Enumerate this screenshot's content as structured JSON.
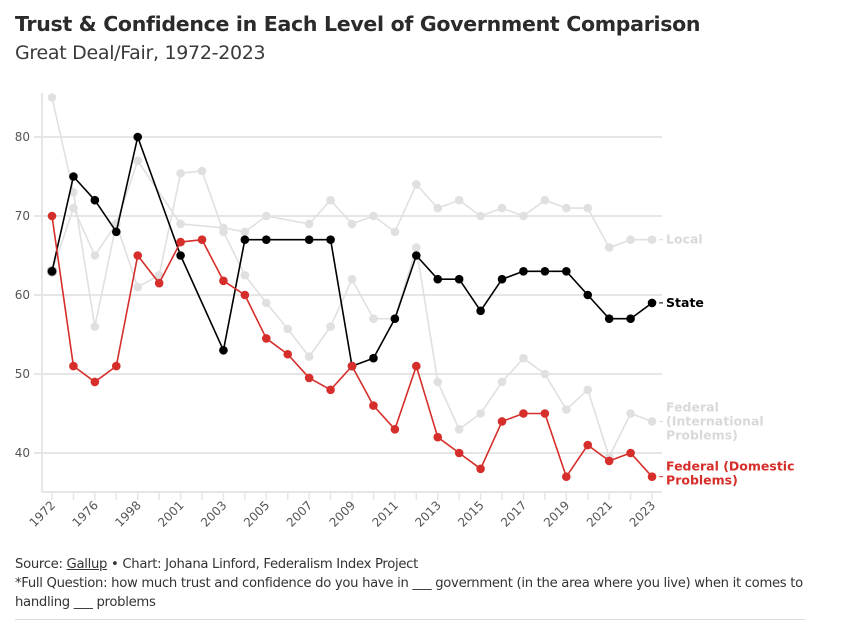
{
  "header": {
    "title": "Trust & Confidence in Each Level of Government Comparison",
    "subtitle": "Great Deal/Fair, 1972-2023"
  },
  "footer": {
    "source_prefix": "Source: ",
    "source_link": "Gallup",
    "source_suffix": " • Chart: Johana Linford, Federalism Index Project",
    "note": "*Full Question: how much trust and confidence do you have in ___ government (in the area where you live) when it comes to handling ___ problems"
  },
  "chart_data": {
    "type": "line",
    "title": "Trust & Confidence in Each Level of Government Comparison",
    "subtitle": "Great Deal/Fair, 1972-2023",
    "xlabel": "",
    "ylabel": "",
    "ylim": [
      35,
      85.5
    ],
    "yticks": [
      40,
      50,
      60,
      70,
      80
    ],
    "grid": true,
    "legend": "direct labels at right end of lines",
    "x": [
      "1972",
      "1974",
      "1976",
      "1997",
      "1998",
      "2000",
      "2001",
      "2002",
      "2003",
      "2004",
      "2005",
      "2006",
      "2007",
      "2008",
      "2009",
      "2010",
      "2011",
      "2012",
      "2013",
      "2014",
      "2015",
      "2016",
      "2017",
      "2018",
      "2019",
      "2020",
      "2021",
      "2022",
      "2023"
    ],
    "xtick_labels": [
      "1972",
      "1976",
      "1998",
      "2001",
      "2003",
      "2005",
      "2007",
      "2009",
      "2011",
      "2013",
      "2015",
      "2017",
      "2019",
      "2021",
      "2023"
    ],
    "series": [
      {
        "name": "Local",
        "label": "Local",
        "color": "#e0e0e0",
        "label_color": "#d9d9d9",
        "values": [
          63,
          71,
          65,
          69,
          77,
          null,
          69,
          null,
          68.5,
          68,
          70,
          null,
          69,
          72,
          69,
          70,
          68,
          74,
          71,
          72,
          70,
          71,
          70,
          72,
          71,
          71,
          66,
          67,
          67
        ]
      },
      {
        "name": "Federal (International Problems)",
        "label": "Federal (International Problems)",
        "color": "#e0e0e0",
        "label_color": "#d9d9d9",
        "values": [
          85,
          73,
          56,
          69,
          61,
          62.5,
          75.4,
          75.7,
          68,
          62.5,
          59,
          55.7,
          52.2,
          56,
          62,
          57,
          57,
          66,
          49,
          43,
          45,
          49,
          52,
          50,
          45.5,
          48,
          39.5,
          45,
          44
        ]
      },
      {
        "name": "State",
        "label": "State",
        "color": "#000000",
        "label_color": "#000000",
        "values": [
          63,
          75,
          72,
          68,
          80,
          null,
          65,
          null,
          53,
          67,
          67,
          null,
          67,
          67,
          51,
          52,
          57,
          65,
          62,
          62,
          58,
          62,
          63,
          63,
          63,
          60,
          57,
          57,
          59
        ]
      },
      {
        "name": "Federal (Domestic Problems)",
        "label": "Federal (Domestic Problems)",
        "color": "#d62e2a",
        "label_color": "#d62e2a",
        "values": [
          70,
          51,
          49,
          51,
          65,
          61.5,
          66.7,
          67,
          61.8,
          60,
          54.5,
          52.5,
          49.5,
          48,
          51,
          46,
          43,
          51,
          42,
          40,
          38,
          44,
          45,
          45,
          37,
          41,
          39,
          40,
          37
        ]
      }
    ]
  }
}
